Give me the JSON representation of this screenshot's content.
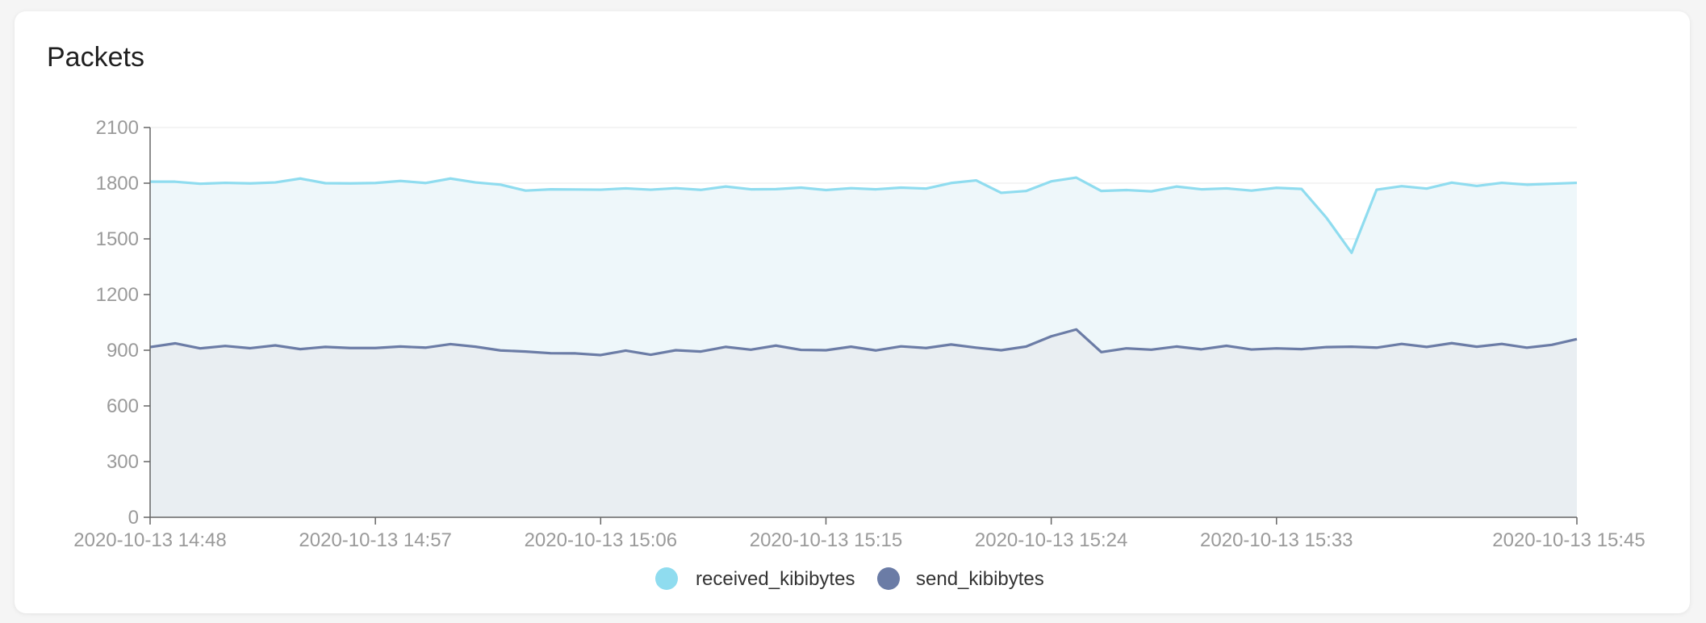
{
  "card": {
    "title": "Packets"
  },
  "chart_data": {
    "type": "area",
    "title": "Packets",
    "xlabel": "",
    "ylabel": "",
    "ylim": [
      0,
      2100
    ],
    "yticks": [
      0,
      300,
      600,
      900,
      1200,
      1500,
      1800,
      2100
    ],
    "x_start": "2020-10-13 14:48",
    "x_end": "2020-10-13 15:45",
    "x_ticks": [
      {
        "label": "2020-10-13 14:48",
        "minute": 0
      },
      {
        "label": "2020-10-13 14:57",
        "minute": 9
      },
      {
        "label": "2020-10-13 15:06",
        "minute": 18
      },
      {
        "label": "2020-10-13 15:15",
        "minute": 27
      },
      {
        "label": "2020-10-13 15:24",
        "minute": 36
      },
      {
        "label": "2020-10-13 15:33",
        "minute": 45
      },
      {
        "label": "2020-10-13 15:45",
        "minute": 57
      }
    ],
    "grid": true,
    "legend_position": "bottom-center",
    "series": [
      {
        "name": "received_kibibytes",
        "color": "#8fdcef",
        "fill": "#eef7fa",
        "values": [
          1808,
          1808,
          1797,
          1802,
          1799,
          1804,
          1825,
          1800,
          1799,
          1801,
          1812,
          1801,
          1825,
          1804,
          1792,
          1760,
          1767,
          1766,
          1765,
          1772,
          1765,
          1773,
          1764,
          1782,
          1767,
          1768,
          1776,
          1763,
          1773,
          1767,
          1776,
          1771,
          1801,
          1815,
          1748,
          1758,
          1810,
          1830,
          1758,
          1763,
          1756,
          1782,
          1767,
          1772,
          1760,
          1775,
          1769,
          1613,
          1425,
          1765,
          1784,
          1771,
          1803,
          1785,
          1802,
          1792,
          1797,
          1802
        ]
      },
      {
        "name": "send_kibibytes",
        "color": "#6b7ca6",
        "fill": "#e9eef2",
        "values": [
          917,
          937,
          910,
          923,
          911,
          926,
          906,
          918,
          912,
          912,
          920,
          914,
          933,
          919,
          899,
          893,
          884,
          883,
          874,
          898,
          876,
          900,
          893,
          918,
          903,
          925,
          902,
          900,
          919,
          899,
          921,
          912,
          931,
          914,
          900,
          920,
          975,
          1012,
          890,
          910,
          903,
          920,
          905,
          924,
          904,
          910,
          906,
          917,
          919,
          914,
          934,
          918,
          938,
          919,
          934,
          914,
          929,
          960
        ]
      }
    ]
  }
}
